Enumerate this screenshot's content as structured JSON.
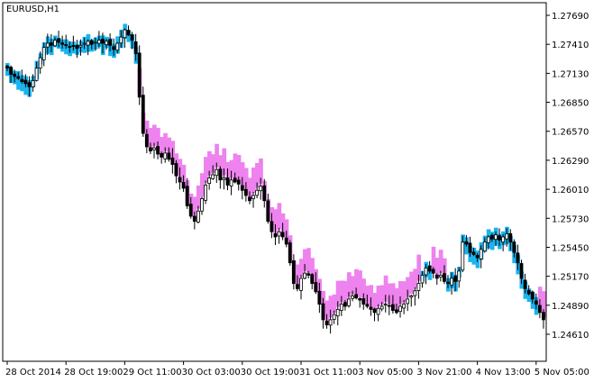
{
  "chart_data": {
    "type": "candlestick",
    "symbol_label": "EURUSD,H1",
    "xlabel": "",
    "ylabel": "",
    "ylim": [
      1.2447,
      1.2783
    ],
    "grid": false,
    "y_ticks": [
      "1.27690",
      "1.27410",
      "1.27130",
      "1.26850",
      "1.26570",
      "1.26290",
      "1.26010",
      "1.25730",
      "1.25450",
      "1.25170",
      "1.24890",
      "1.24610"
    ],
    "x_ticks": [
      {
        "label": "28 Oct 2014",
        "bar": 0
      },
      {
        "label": "28 Oct 19:00",
        "bar": 16
      },
      {
        "label": "29 Oct 11:00",
        "bar": 32
      },
      {
        "label": "30 Oct 03:00",
        "bar": 48
      },
      {
        "label": "30 Oct 19:00",
        "bar": 64
      },
      {
        "label": "31 Oct 11:00",
        "bar": 80
      },
      {
        "label": "3 Nov 05:00",
        "bar": 96
      },
      {
        "label": "3 Nov 21:00",
        "bar": 112
      },
      {
        "label": "4 Nov 13:00",
        "bar": 128
      },
      {
        "label": "5 Nov 05:00",
        "bar": 144
      }
    ],
    "colors": {
      "bull_band": "#1ab4ee",
      "bear_band": "#ee82ee",
      "candle": "#000000"
    },
    "series": [
      {
        "values": [
          1.2718,
          1.2712,
          1.271,
          1.2708,
          1.2705,
          1.2703,
          1.27,
          1.2706,
          1.2718,
          1.2728,
          1.2738,
          1.2742,
          1.274,
          1.2745,
          1.2743,
          1.2741,
          1.274,
          1.2738,
          1.2739,
          1.2737,
          1.274,
          1.2742,
          1.2744,
          1.2741,
          1.2743,
          1.2745,
          1.2742,
          1.2744,
          1.274,
          1.2736,
          1.2742,
          1.2748,
          1.2755,
          1.275,
          1.2745,
          1.2732,
          1.269,
          1.2655,
          1.2642,
          1.2638,
          1.2641,
          1.2635,
          1.2632,
          1.2636,
          1.263,
          1.2625,
          1.2614,
          1.2608,
          1.2602,
          1.2585,
          1.2575,
          1.257,
          1.258,
          1.2592,
          1.2605,
          1.2612,
          1.2615,
          1.262,
          1.261,
          1.2612,
          1.2605,
          1.261,
          1.2608,
          1.2606,
          1.26,
          1.2595,
          1.259,
          1.2595,
          1.26,
          1.2604,
          1.259,
          1.257,
          1.256,
          1.2555,
          1.256,
          1.2555,
          1.2548,
          1.253,
          1.251,
          1.2505,
          1.2515,
          1.252,
          1.2518,
          1.251,
          1.2502,
          1.249,
          1.2475,
          1.247,
          1.2475,
          1.248,
          1.2485,
          1.249,
          1.2488,
          1.2495,
          1.2498,
          1.2496,
          1.2494,
          1.249,
          1.2488,
          1.2485,
          1.2482,
          1.2486,
          1.2488,
          1.249,
          1.2488,
          1.2484,
          1.2482,
          1.2488,
          1.249,
          1.2495,
          1.2498,
          1.2503,
          1.251,
          1.2518,
          1.2525,
          1.2522,
          1.252,
          1.2515,
          1.2518,
          1.2512,
          1.251,
          1.2515,
          1.2512,
          1.2522,
          1.255,
          1.2548,
          1.254,
          1.2538,
          1.2535,
          1.2543,
          1.255,
          1.2555,
          1.2553,
          1.2557,
          1.2552,
          1.2555,
          1.2558,
          1.255,
          1.254,
          1.253,
          1.2515,
          1.2505,
          1.25,
          1.2495,
          1.249,
          1.2482,
          1.2475
        ]
      }
    ]
  }
}
